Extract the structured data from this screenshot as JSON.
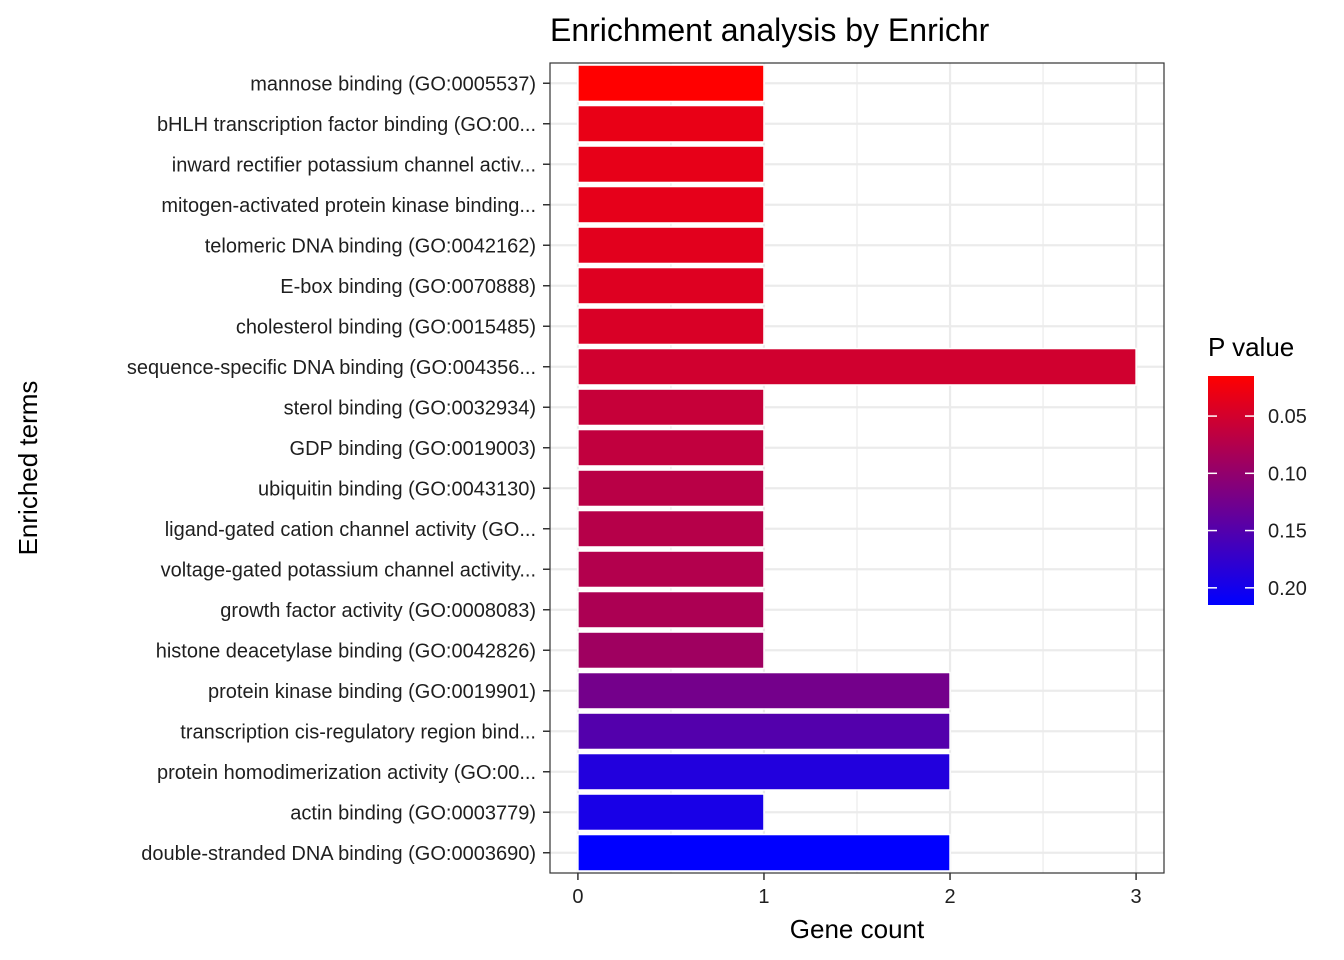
{
  "chart_data": {
    "type": "bar",
    "orientation": "horizontal",
    "title": "Enrichment analysis by Enrichr",
    "xlabel": "Gene count",
    "ylabel": "Enriched terms",
    "xlim": [
      -0.15,
      3.15
    ],
    "x_ticks": [
      0,
      1,
      2,
      3
    ],
    "x_tick_labels": [
      "0",
      "1",
      "2",
      "3"
    ],
    "grid": true,
    "legend": {
      "title": "P value",
      "placement": "right",
      "type": "colorbar",
      "range": [
        0.015,
        0.215
      ],
      "ticks": [
        0.05,
        0.1,
        0.15,
        0.2
      ],
      "tick_labels": [
        "0.05",
        "0.10",
        "0.15",
        "0.20"
      ],
      "color_low": "#FF0000",
      "color_high": "#0000FF"
    },
    "categories": [
      "mannose binding (GO:0005537)",
      "bHLH transcription factor binding (GO:00...",
      "inward rectifier potassium channel activ...",
      "mitogen-activated protein kinase binding...",
      "telomeric DNA binding (GO:0042162)",
      "E-box binding (GO:0070888)",
      "cholesterol binding (GO:0015485)",
      "sequence-specific DNA binding (GO:004356...",
      "sterol binding (GO:0032934)",
      "GDP binding (GO:0019003)",
      "ubiquitin binding (GO:0043130)",
      "ligand-gated cation channel activity (GO...",
      "voltage-gated potassium channel activity...",
      "growth factor activity (GO:0008083)",
      "histone deacetylase binding (GO:0042826)",
      "protein kinase binding (GO:0019901)",
      "transcription cis-regulatory region bind...",
      "protein homodimerization activity (GO:00...",
      "actin binding (GO:0003779)",
      "double-stranded DNA binding (GO:0003690)"
    ],
    "values": [
      1,
      1,
      1,
      1,
      1,
      1,
      1,
      3,
      1,
      1,
      1,
      1,
      1,
      1,
      1,
      2,
      2,
      2,
      1,
      2
    ],
    "p_values": [
      0.015,
      0.032,
      0.034,
      0.035,
      0.038,
      0.041,
      0.045,
      0.052,
      0.06,
      0.064,
      0.07,
      0.072,
      0.075,
      0.08,
      0.09,
      0.124,
      0.15,
      0.188,
      0.196,
      0.215
    ],
    "background": "#ffffff",
    "grid_color": "#ebebeb",
    "panel_border_color": "#333333"
  }
}
